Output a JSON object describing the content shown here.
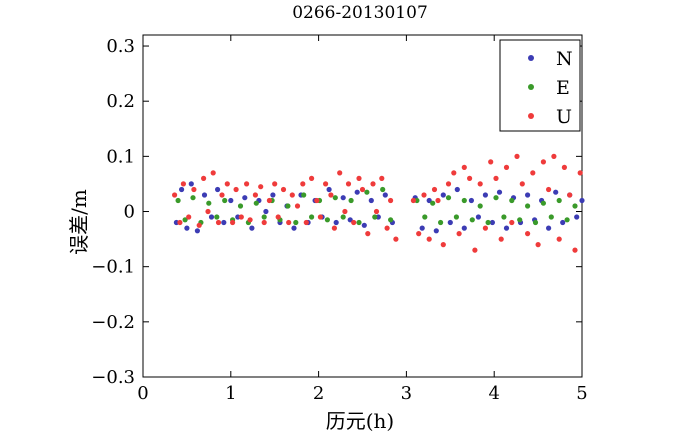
{
  "chart_data": {
    "type": "scatter",
    "title": "0266-20130107",
    "xlabel": "历元(h)",
    "ylabel": "误差/m",
    "xlim": [
      0,
      5
    ],
    "ylim": [
      -0.3,
      0.32
    ],
    "xticks": [
      0,
      1,
      2,
      3,
      4,
      5
    ],
    "xtick_labels": [
      "0",
      "1",
      "2",
      "3",
      "4",
      "5"
    ],
    "yticks": [
      -0.3,
      -0.2,
      -0.1,
      0,
      0.1,
      0.2,
      0.3
    ],
    "ytick_labels": [
      "−0.3",
      "−0.2",
      "−0.1",
      "0",
      "0.1",
      "0.2",
      "0.3"
    ],
    "grid": false,
    "legend_position": "top-right",
    "series": [
      {
        "name": "N",
        "color": "#3c3cb4",
        "x": [
          0.38,
          0.44,
          0.5,
          0.55,
          0.62,
          0.7,
          0.78,
          0.85,
          0.92,
          1.0,
          1.08,
          1.16,
          1.24,
          1.32,
          1.4,
          1.48,
          1.56,
          1.64,
          1.72,
          1.8,
          1.88,
          1.96,
          2.04,
          2.12,
          2.2,
          2.28,
          2.36,
          2.44,
          2.52,
          2.6,
          2.68,
          2.76,
          2.84,
          3.1,
          3.18,
          3.26,
          3.34,
          3.42,
          3.5,
          3.58,
          3.66,
          3.74,
          3.82,
          3.9,
          3.98,
          4.06,
          4.14,
          4.22,
          4.3,
          4.38,
          4.46,
          4.54,
          4.62,
          4.7,
          4.78,
          4.86,
          4.94,
          5.0
        ],
        "y": [
          -0.02,
          0.04,
          -0.03,
          0.05,
          -0.035,
          0.03,
          -0.01,
          0.04,
          -0.02,
          0.02,
          -0.01,
          0.025,
          -0.03,
          0.02,
          0.0,
          0.03,
          -0.02,
          0.01,
          -0.03,
          0.03,
          -0.02,
          0.02,
          -0.01,
          0.04,
          -0.02,
          0.025,
          -0.015,
          0.035,
          -0.025,
          0.02,
          -0.01,
          0.03,
          -0.02,
          0.025,
          -0.03,
          0.02,
          -0.035,
          0.03,
          -0.02,
          0.04,
          -0.03,
          0.02,
          -0.01,
          0.03,
          -0.02,
          0.035,
          -0.03,
          0.025,
          -0.02,
          0.03,
          -0.015,
          0.02,
          -0.03,
          0.035,
          -0.02,
          0.03,
          -0.01,
          0.02
        ]
      },
      {
        "name": "E",
        "color": "#3a9a2a",
        "x": [
          0.4,
          0.48,
          0.57,
          0.66,
          0.75,
          0.84,
          0.93,
          1.02,
          1.11,
          1.2,
          1.29,
          1.38,
          1.47,
          1.56,
          1.65,
          1.74,
          1.83,
          1.92,
          2.01,
          2.1,
          2.19,
          2.28,
          2.37,
          2.46,
          2.55,
          2.64,
          2.73,
          2.82,
          3.12,
          3.21,
          3.3,
          3.39,
          3.48,
          3.57,
          3.66,
          3.75,
          3.84,
          3.93,
          4.02,
          4.11,
          4.2,
          4.29,
          4.38,
          4.47,
          4.56,
          4.65,
          4.74,
          4.83,
          4.92
        ],
        "y": [
          0.02,
          -0.015,
          0.025,
          -0.02,
          0.015,
          -0.01,
          0.02,
          -0.015,
          0.01,
          -0.02,
          0.015,
          -0.01,
          0.02,
          -0.015,
          0.01,
          -0.02,
          0.03,
          -0.01,
          0.02,
          -0.015,
          0.025,
          -0.01,
          0.02,
          -0.02,
          0.035,
          -0.01,
          0.04,
          -0.015,
          0.02,
          -0.01,
          0.015,
          -0.02,
          0.025,
          -0.01,
          0.02,
          -0.015,
          0.01,
          -0.02,
          0.025,
          -0.01,
          0.02,
          -0.015,
          0.01,
          -0.02,
          0.015,
          -0.01,
          0.02,
          -0.015,
          0.01
        ]
      },
      {
        "name": "U",
        "color": "#ef3b3b",
        "x": [
          0.36,
          0.42,
          0.46,
          0.52,
          0.58,
          0.64,
          0.69,
          0.74,
          0.8,
          0.86,
          0.9,
          0.96,
          1.02,
          1.06,
          1.12,
          1.18,
          1.22,
          1.28,
          1.34,
          1.38,
          1.44,
          1.5,
          1.54,
          1.6,
          1.66,
          1.7,
          1.76,
          1.82,
          1.86,
          1.92,
          1.98,
          2.02,
          2.08,
          2.14,
          2.18,
          2.24,
          2.3,
          2.34,
          2.4,
          2.46,
          2.5,
          2.56,
          2.62,
          2.66,
          2.72,
          2.78,
          2.82,
          2.88,
          3.08,
          3.14,
          3.2,
          3.26,
          3.32,
          3.36,
          3.42,
          3.48,
          3.54,
          3.6,
          3.66,
          3.72,
          3.78,
          3.84,
          3.9,
          3.96,
          4.02,
          4.08,
          4.14,
          4.2,
          4.26,
          4.32,
          4.38,
          4.44,
          4.5,
          4.56,
          4.62,
          4.68,
          4.74,
          4.8,
          4.86,
          4.92,
          4.98
        ],
        "y": [
          0.03,
          -0.02,
          0.05,
          -0.01,
          0.04,
          -0.025,
          0.06,
          0.0,
          0.07,
          -0.02,
          0.03,
          0.05,
          -0.02,
          0.04,
          -0.01,
          0.05,
          -0.015,
          0.03,
          0.045,
          -0.02,
          0.02,
          0.05,
          -0.01,
          0.04,
          -0.02,
          0.03,
          0.01,
          0.05,
          -0.02,
          0.06,
          0.02,
          -0.01,
          0.05,
          0.03,
          -0.03,
          0.07,
          0.0,
          0.05,
          -0.02,
          0.06,
          0.04,
          -0.04,
          0.05,
          0.0,
          0.06,
          -0.03,
          0.02,
          -0.05,
          0.02,
          -0.04,
          0.03,
          -0.05,
          0.04,
          0.02,
          -0.06,
          0.05,
          0.07,
          -0.04,
          0.08,
          0.06,
          -0.07,
          0.05,
          -0.03,
          0.09,
          0.06,
          -0.05,
          0.08,
          -0.02,
          0.1,
          0.05,
          -0.04,
          0.07,
          -0.06,
          0.09,
          0.04,
          0.1,
          -0.05,
          0.08,
          0.03,
          -0.07,
          0.07
        ]
      }
    ]
  }
}
